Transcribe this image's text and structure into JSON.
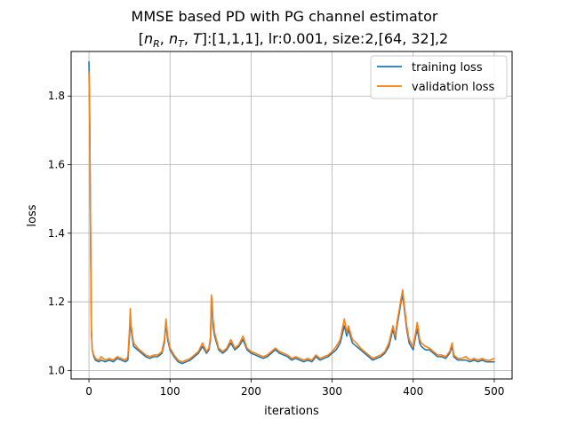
{
  "chart_data": {
    "type": "line",
    "title": "MMSE based PD with PG channel estimator",
    "subtitle_parts": [
      "[",
      "n",
      "R",
      ", ",
      "n",
      "T",
      ", ",
      "T",
      "]:[1,1,1], lr:0.001, size:2,[64, 32],2"
    ],
    "xlabel": "iterations",
    "ylabel": "loss",
    "xlim": [
      -22,
      522
    ],
    "ylim": [
      0.975,
      1.93
    ],
    "xticks": [
      0,
      100,
      200,
      300,
      400,
      500
    ],
    "yticks": [
      1.0,
      1.2,
      1.4,
      1.6,
      1.8
    ],
    "ytick_labels": [
      "1.0",
      "1.2",
      "1.4",
      "1.6",
      "1.8"
    ],
    "grid": true,
    "legend_position": "top-right",
    "series": [
      {
        "name": "training loss",
        "color": "#1f77b4",
        "points": [
          [
            0,
            1.9
          ],
          [
            1,
            1.72
          ],
          [
            2,
            1.4
          ],
          [
            3,
            1.12
          ],
          [
            4,
            1.06
          ],
          [
            6,
            1.04
          ],
          [
            8,
            1.03
          ],
          [
            12,
            1.025
          ],
          [
            15,
            1.03
          ],
          [
            20,
            1.025
          ],
          [
            25,
            1.03
          ],
          [
            30,
            1.025
          ],
          [
            35,
            1.035
          ],
          [
            40,
            1.03
          ],
          [
            45,
            1.025
          ],
          [
            48,
            1.03
          ],
          [
            50,
            1.1
          ],
          [
            51,
            1.15
          ],
          [
            52,
            1.12
          ],
          [
            55,
            1.07
          ],
          [
            60,
            1.06
          ],
          [
            65,
            1.05
          ],
          [
            70,
            1.04
          ],
          [
            75,
            1.035
          ],
          [
            80,
            1.04
          ],
          [
            85,
            1.04
          ],
          [
            90,
            1.05
          ],
          [
            93,
            1.08
          ],
          [
            95,
            1.14
          ],
          [
            97,
            1.09
          ],
          [
            100,
            1.06
          ],
          [
            105,
            1.04
          ],
          [
            110,
            1.025
          ],
          [
            115,
            1.02
          ],
          [
            120,
            1.025
          ],
          [
            125,
            1.03
          ],
          [
            130,
            1.04
          ],
          [
            135,
            1.05
          ],
          [
            140,
            1.07
          ],
          [
            145,
            1.05
          ],
          [
            148,
            1.06
          ],
          [
            150,
            1.09
          ],
          [
            151,
            1.2
          ],
          [
            152,
            1.18
          ],
          [
            153,
            1.13
          ],
          [
            155,
            1.1
          ],
          [
            160,
            1.06
          ],
          [
            165,
            1.05
          ],
          [
            170,
            1.06
          ],
          [
            175,
            1.08
          ],
          [
            180,
            1.06
          ],
          [
            185,
            1.07
          ],
          [
            190,
            1.09
          ],
          [
            195,
            1.06
          ],
          [
            200,
            1.05
          ],
          [
            205,
            1.045
          ],
          [
            210,
            1.04
          ],
          [
            215,
            1.035
          ],
          [
            220,
            1.04
          ],
          [
            225,
            1.05
          ],
          [
            230,
            1.06
          ],
          [
            235,
            1.05
          ],
          [
            240,
            1.045
          ],
          [
            245,
            1.04
          ],
          [
            250,
            1.03
          ],
          [
            255,
            1.035
          ],
          [
            260,
            1.03
          ],
          [
            265,
            1.025
          ],
          [
            270,
            1.03
          ],
          [
            275,
            1.025
          ],
          [
            280,
            1.04
          ],
          [
            285,
            1.03
          ],
          [
            290,
            1.035
          ],
          [
            295,
            1.04
          ],
          [
            300,
            1.05
          ],
          [
            305,
            1.06
          ],
          [
            310,
            1.08
          ],
          [
            315,
            1.13
          ],
          [
            318,
            1.1
          ],
          [
            320,
            1.12
          ],
          [
            325,
            1.08
          ],
          [
            330,
            1.07
          ],
          [
            335,
            1.06
          ],
          [
            340,
            1.05
          ],
          [
            345,
            1.04
          ],
          [
            350,
            1.03
          ],
          [
            355,
            1.035
          ],
          [
            360,
            1.04
          ],
          [
            365,
            1.05
          ],
          [
            370,
            1.07
          ],
          [
            375,
            1.12
          ],
          [
            378,
            1.09
          ],
          [
            380,
            1.13
          ],
          [
            383,
            1.17
          ],
          [
            385,
            1.2
          ],
          [
            387,
            1.22
          ],
          [
            389,
            1.18
          ],
          [
            392,
            1.12
          ],
          [
            395,
            1.08
          ],
          [
            400,
            1.06
          ],
          [
            403,
            1.1
          ],
          [
            405,
            1.12
          ],
          [
            408,
            1.08
          ],
          [
            410,
            1.07
          ],
          [
            415,
            1.06
          ],
          [
            420,
            1.06
          ],
          [
            425,
            1.05
          ],
          [
            430,
            1.04
          ],
          [
            435,
            1.04
          ],
          [
            440,
            1.035
          ],
          [
            445,
            1.05
          ],
          [
            448,
            1.07
          ],
          [
            450,
            1.04
          ],
          [
            455,
            1.03
          ],
          [
            460,
            1.03
          ],
          [
            465,
            1.03
          ],
          [
            470,
            1.025
          ],
          [
            475,
            1.03
          ],
          [
            480,
            1.025
          ],
          [
            485,
            1.03
          ],
          [
            490,
            1.025
          ],
          [
            495,
            1.025
          ],
          [
            500,
            1.025
          ]
        ]
      },
      {
        "name": "validation loss",
        "color": "#ff7f0e",
        "points": [
          [
            0,
            1.87
          ],
          [
            1,
            1.7
          ],
          [
            2,
            1.38
          ],
          [
            3,
            1.11
          ],
          [
            4,
            1.06
          ],
          [
            6,
            1.045
          ],
          [
            8,
            1.035
          ],
          [
            12,
            1.03
          ],
          [
            15,
            1.04
          ],
          [
            20,
            1.03
          ],
          [
            25,
            1.035
          ],
          [
            30,
            1.03
          ],
          [
            35,
            1.04
          ],
          [
            40,
            1.035
          ],
          [
            45,
            1.03
          ],
          [
            48,
            1.04
          ],
          [
            50,
            1.12
          ],
          [
            51,
            1.18
          ],
          [
            52,
            1.13
          ],
          [
            55,
            1.08
          ],
          [
            60,
            1.065
          ],
          [
            65,
            1.055
          ],
          [
            70,
            1.045
          ],
          [
            75,
            1.04
          ],
          [
            80,
            1.045
          ],
          [
            85,
            1.045
          ],
          [
            90,
            1.055
          ],
          [
            93,
            1.09
          ],
          [
            95,
            1.15
          ],
          [
            97,
            1.1
          ],
          [
            100,
            1.065
          ],
          [
            105,
            1.045
          ],
          [
            110,
            1.03
          ],
          [
            115,
            1.025
          ],
          [
            120,
            1.03
          ],
          [
            125,
            1.035
          ],
          [
            130,
            1.045
          ],
          [
            135,
            1.055
          ],
          [
            140,
            1.08
          ],
          [
            145,
            1.055
          ],
          [
            148,
            1.065
          ],
          [
            150,
            1.1
          ],
          [
            151,
            1.22
          ],
          [
            152,
            1.2
          ],
          [
            153,
            1.15
          ],
          [
            155,
            1.11
          ],
          [
            160,
            1.065
          ],
          [
            165,
            1.055
          ],
          [
            170,
            1.065
          ],
          [
            175,
            1.09
          ],
          [
            180,
            1.065
          ],
          [
            185,
            1.075
          ],
          [
            190,
            1.1
          ],
          [
            195,
            1.065
          ],
          [
            200,
            1.055
          ],
          [
            205,
            1.05
          ],
          [
            210,
            1.045
          ],
          [
            215,
            1.04
          ],
          [
            220,
            1.045
          ],
          [
            225,
            1.055
          ],
          [
            230,
            1.065
          ],
          [
            235,
            1.055
          ],
          [
            240,
            1.05
          ],
          [
            245,
            1.045
          ],
          [
            250,
            1.035
          ],
          [
            255,
            1.04
          ],
          [
            260,
            1.035
          ],
          [
            265,
            1.03
          ],
          [
            270,
            1.035
          ],
          [
            275,
            1.03
          ],
          [
            280,
            1.045
          ],
          [
            285,
            1.035
          ],
          [
            290,
            1.04
          ],
          [
            295,
            1.045
          ],
          [
            300,
            1.055
          ],
          [
            305,
            1.07
          ],
          [
            310,
            1.09
          ],
          [
            315,
            1.15
          ],
          [
            318,
            1.11
          ],
          [
            320,
            1.13
          ],
          [
            325,
            1.09
          ],
          [
            330,
            1.08
          ],
          [
            335,
            1.065
          ],
          [
            340,
            1.055
          ],
          [
            345,
            1.045
          ],
          [
            350,
            1.035
          ],
          [
            355,
            1.04
          ],
          [
            360,
            1.045
          ],
          [
            365,
            1.055
          ],
          [
            370,
            1.08
          ],
          [
            375,
            1.13
          ],
          [
            378,
            1.1
          ],
          [
            380,
            1.14
          ],
          [
            383,
            1.18
          ],
          [
            385,
            1.21
          ],
          [
            387,
            1.235
          ],
          [
            389,
            1.19
          ],
          [
            392,
            1.13
          ],
          [
            395,
            1.09
          ],
          [
            400,
            1.07
          ],
          [
            403,
            1.11
          ],
          [
            405,
            1.14
          ],
          [
            408,
            1.09
          ],
          [
            410,
            1.08
          ],
          [
            415,
            1.07
          ],
          [
            420,
            1.065
          ],
          [
            425,
            1.055
          ],
          [
            430,
            1.045
          ],
          [
            435,
            1.045
          ],
          [
            440,
            1.04
          ],
          [
            445,
            1.055
          ],
          [
            448,
            1.08
          ],
          [
            450,
            1.045
          ],
          [
            455,
            1.035
          ],
          [
            460,
            1.035
          ],
          [
            465,
            1.04
          ],
          [
            470,
            1.03
          ],
          [
            475,
            1.035
          ],
          [
            480,
            1.03
          ],
          [
            485,
            1.035
          ],
          [
            490,
            1.03
          ],
          [
            495,
            1.03
          ],
          [
            500,
            1.035
          ]
        ]
      }
    ]
  }
}
